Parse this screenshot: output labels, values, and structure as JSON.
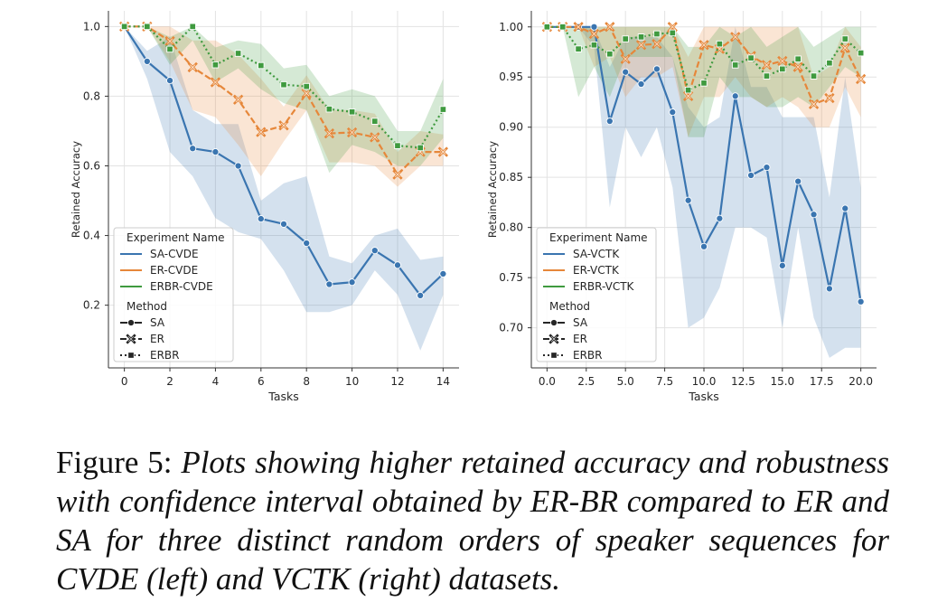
{
  "caption": {
    "label": "Figure 5:",
    "text": "Plots showing higher retained accuracy and robustness with confidence interval obtained by ER-BR compared to ER and SA for three distinct random orders of speaker sequences for CVDE (left) and VCTK (right) datasets."
  },
  "colors": {
    "SA": "#3a75b0",
    "ER": "#e6873a",
    "ERBR": "#3f9a3f"
  },
  "chart_data": [
    {
      "type": "line",
      "xlabel": "Tasks",
      "ylabel": "Retained Accuracy",
      "xlim": [
        -0.7,
        14.7
      ],
      "ylim": [
        0.02,
        1.045
      ],
      "xticks": [
        0,
        2,
        4,
        6,
        8,
        10,
        12,
        14
      ],
      "xtick_labels": [
        "0",
        "2",
        "4",
        "6",
        "8",
        "10",
        "12",
        "14"
      ],
      "yticks": [
        0.2,
        0.4,
        0.6,
        0.8,
        1.0
      ],
      "ytick_labels": [
        "0.2",
        "0.4",
        "0.6",
        "0.8",
        "1.0"
      ],
      "grid": true,
      "legend_placement": "bottom-left",
      "legend": {
        "title1": "Experiment Name",
        "entries": [
          "SA-CVDE",
          "ER-CVDE",
          "ERBR-CVDE"
        ],
        "title2": "Method",
        "methods": [
          "SA",
          "ER",
          "ERBR"
        ]
      },
      "series": [
        {
          "name": "SA-CVDE",
          "method": "SA",
          "x": [
            0,
            1,
            2,
            3,
            4,
            5,
            6,
            7,
            8,
            9,
            10,
            11,
            12,
            13,
            14
          ],
          "y": [
            1.0,
            0.9,
            0.845,
            0.65,
            0.64,
            0.6,
            0.448,
            0.433,
            0.378,
            0.26,
            0.266,
            0.357,
            0.315,
            0.228,
            0.29
          ],
          "ci_low": [
            1.0,
            0.85,
            0.64,
            0.57,
            0.45,
            0.41,
            0.39,
            0.3,
            0.18,
            0.18,
            0.2,
            0.3,
            0.23,
            0.07,
            0.23
          ],
          "ci_high": [
            1.0,
            0.93,
            0.97,
            0.76,
            0.72,
            0.72,
            0.5,
            0.55,
            0.57,
            0.34,
            0.32,
            0.4,
            0.42,
            0.33,
            0.34
          ]
        },
        {
          "name": "ER-CVDE",
          "method": "ER",
          "x": [
            0,
            1,
            2,
            3,
            4,
            5,
            6,
            7,
            8,
            9,
            10,
            11,
            12,
            13,
            14
          ],
          "y": [
            1.0,
            1.0,
            0.958,
            0.883,
            0.84,
            0.79,
            0.697,
            0.716,
            0.808,
            0.693,
            0.696,
            0.682,
            0.575,
            0.64,
            0.64
          ],
          "ci_low": [
            1.0,
            1.0,
            0.9,
            0.76,
            0.74,
            0.66,
            0.57,
            0.67,
            0.76,
            0.61,
            0.61,
            0.6,
            0.54,
            0.6,
            0.6
          ],
          "ci_high": [
            1.0,
            1.0,
            1.0,
            0.96,
            0.96,
            0.92,
            0.85,
            0.77,
            0.86,
            0.76,
            0.76,
            0.75,
            0.64,
            0.7,
            0.69
          ]
        },
        {
          "name": "ERBR-CVDE",
          "method": "ERBR",
          "x": [
            0,
            1,
            2,
            3,
            4,
            5,
            6,
            7,
            8,
            9,
            10,
            11,
            12,
            13,
            14
          ],
          "y": [
            1.0,
            1.0,
            0.935,
            1.0,
            0.89,
            0.923,
            0.888,
            0.833,
            0.828,
            0.763,
            0.755,
            0.728,
            0.658,
            0.652,
            0.762
          ],
          "ci_low": [
            1.0,
            1.0,
            0.89,
            0.96,
            0.84,
            0.88,
            0.82,
            0.78,
            0.76,
            0.58,
            0.66,
            0.64,
            0.6,
            0.6,
            0.68
          ],
          "ci_high": [
            1.0,
            1.0,
            0.97,
            1.0,
            0.94,
            0.96,
            0.95,
            0.88,
            0.89,
            0.8,
            0.82,
            0.8,
            0.7,
            0.7,
            0.85
          ]
        }
      ]
    },
    {
      "type": "line",
      "xlabel": "Tasks",
      "ylabel": "Retained Accuracy",
      "xlim": [
        -1.0,
        21.0
      ],
      "ylim": [
        0.66,
        1.016
      ],
      "xticks": [
        0,
        2.5,
        5,
        7.5,
        10,
        12.5,
        15,
        17.5,
        20
      ],
      "xtick_labels": [
        "0.0",
        "2.5",
        "5.0",
        "7.5",
        "10.0",
        "12.5",
        "15.0",
        "17.5",
        "20.0"
      ],
      "yticks": [
        0.7,
        0.75,
        0.8,
        0.85,
        0.9,
        0.95,
        1.0
      ],
      "ytick_labels": [
        "0.70",
        "0.75",
        "0.80",
        "0.85",
        "0.90",
        "0.95",
        "1.00"
      ],
      "grid": true,
      "legend_placement": "bottom-left",
      "legend": {
        "title1": "Experiment Name",
        "entries": [
          "SA-VCTK",
          "ER-VCTK",
          "ERBR-VCTK"
        ],
        "title2": "Method",
        "methods": [
          "SA",
          "ER",
          "ERBR"
        ]
      },
      "series": [
        {
          "name": "SA-VCTK",
          "method": "SA",
          "x": [
            0,
            1,
            2,
            3,
            4,
            5,
            6,
            7,
            8,
            9,
            10,
            11,
            12,
            13,
            14,
            15,
            16,
            17,
            18,
            19,
            20
          ],
          "y": [
            1.0,
            1.0,
            1.0,
            1.0,
            0.906,
            0.955,
            0.943,
            0.958,
            0.915,
            0.827,
            0.781,
            0.809,
            0.931,
            0.852,
            0.86,
            0.762,
            0.846,
            0.813,
            0.739,
            0.819,
            0.726
          ],
          "ci_low": [
            1.0,
            1.0,
            1.0,
            0.98,
            0.82,
            0.9,
            0.87,
            0.9,
            0.84,
            0.7,
            0.71,
            0.74,
            0.8,
            0.8,
            0.79,
            0.7,
            0.8,
            0.71,
            0.67,
            0.68,
            0.68
          ],
          "ci_high": [
            1.0,
            1.0,
            1.0,
            1.0,
            0.96,
            0.99,
            0.99,
            0.99,
            0.97,
            0.92,
            0.9,
            0.91,
            1.0,
            0.94,
            0.94,
            0.91,
            0.91,
            0.91,
            0.83,
            0.95,
            0.84
          ]
        },
        {
          "name": "ER-VCTK",
          "method": "ER",
          "x": [
            0,
            1,
            2,
            3,
            4,
            5,
            6,
            7,
            8,
            9,
            10,
            11,
            12,
            13,
            14,
            15,
            16,
            17,
            18,
            19,
            20
          ],
          "y": [
            1.0,
            1.0,
            1.0,
            0.993,
            1.0,
            0.968,
            0.982,
            0.983,
            1.0,
            0.931,
            0.982,
            0.978,
            0.99,
            0.971,
            0.962,
            0.966,
            0.96,
            0.923,
            0.929,
            0.979,
            0.948
          ],
          "ci_low": [
            1.0,
            1.0,
            1.0,
            0.96,
            0.97,
            0.93,
            0.95,
            0.95,
            0.96,
            0.89,
            0.93,
            0.93,
            0.95,
            0.93,
            0.92,
            0.93,
            0.92,
            0.9,
            0.9,
            0.94,
            0.91
          ],
          "ci_high": [
            1.0,
            1.0,
            1.0,
            1.0,
            1.0,
            1.0,
            1.0,
            1.0,
            1.0,
            0.97,
            1.0,
            1.0,
            1.0,
            1.0,
            1.0,
            1.0,
            1.0,
            0.95,
            0.96,
            1.0,
            0.98
          ]
        },
        {
          "name": "ERBR-VCTK",
          "method": "ERBR",
          "x": [
            0,
            1,
            2,
            3,
            4,
            5,
            6,
            7,
            8,
            9,
            10,
            11,
            12,
            13,
            14,
            15,
            16,
            17,
            18,
            19,
            20
          ],
          "y": [
            1.0,
            1.0,
            0.978,
            0.982,
            0.973,
            0.988,
            0.99,
            0.993,
            0.994,
            0.937,
            0.944,
            0.983,
            0.962,
            0.969,
            0.951,
            0.958,
            0.968,
            0.951,
            0.964,
            0.988,
            0.974
          ],
          "ci_low": [
            1.0,
            1.0,
            0.93,
            0.96,
            0.93,
            0.97,
            0.97,
            0.97,
            0.97,
            0.89,
            0.89,
            0.95,
            0.93,
            0.93,
            0.92,
            0.92,
            0.93,
            0.92,
            0.94,
            0.96,
            0.95
          ],
          "ci_high": [
            1.0,
            1.0,
            1.0,
            1.0,
            1.0,
            1.0,
            1.0,
            1.0,
            1.0,
            0.98,
            0.98,
            1.0,
            0.99,
            1.0,
            0.98,
            0.99,
            1.0,
            0.98,
            0.99,
            1.0,
            1.0
          ]
        }
      ]
    }
  ]
}
